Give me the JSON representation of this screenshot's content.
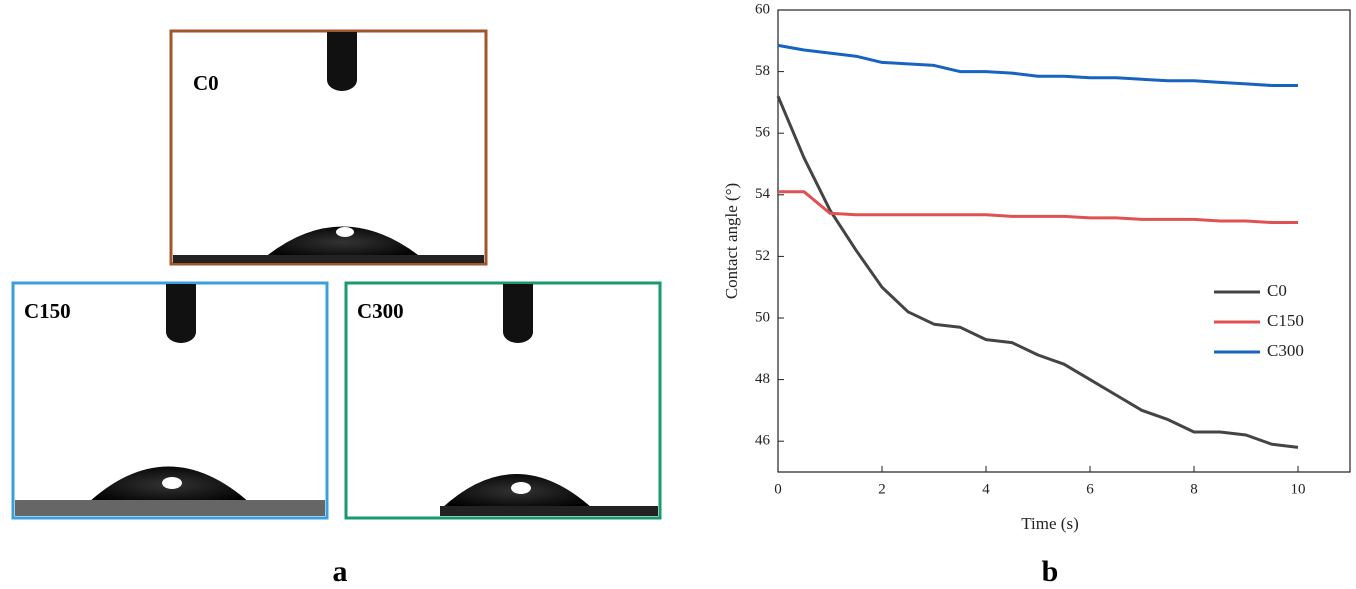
{
  "panel_a": {
    "label": "a",
    "photos": [
      {
        "label": "C0"
      },
      {
        "label": "C150"
      },
      {
        "label": "C300"
      }
    ]
  },
  "chart_data": {
    "type": "line",
    "panel_label": "b",
    "x_label": "Time (s)",
    "y_label": "Contact angle (°)",
    "x": [
      0,
      0.5,
      1,
      1.5,
      2,
      2.5,
      3,
      3.5,
      4,
      4.5,
      5,
      5.5,
      6,
      6.5,
      7,
      7.5,
      8,
      8.5,
      9,
      9.5,
      10
    ],
    "series": [
      {
        "name": "C0",
        "color": "#444444",
        "values": [
          57.2,
          55.2,
          53.5,
          52.2,
          51.0,
          50.2,
          49.8,
          49.7,
          49.3,
          49.2,
          48.8,
          48.5,
          48.0,
          47.5,
          47.0,
          46.7,
          46.3,
          46.3,
          46.2,
          45.9,
          45.8
        ]
      },
      {
        "name": "C150",
        "color": "#e05252",
        "values": [
          54.1,
          54.1,
          53.4,
          53.35,
          53.35,
          53.35,
          53.35,
          53.35,
          53.35,
          53.3,
          53.3,
          53.3,
          53.25,
          53.25,
          53.2,
          53.2,
          53.2,
          53.15,
          53.15,
          53.1,
          53.1
        ]
      },
      {
        "name": "C300",
        "color": "#1763c0",
        "values": [
          58.85,
          58.7,
          58.6,
          58.5,
          58.3,
          58.25,
          58.2,
          58.0,
          58.0,
          57.95,
          57.85,
          57.85,
          57.8,
          57.8,
          57.75,
          57.7,
          57.7,
          57.65,
          57.6,
          57.55,
          57.55
        ]
      }
    ],
    "xlim": [
      0,
      11
    ],
    "ylim": [
      45,
      60
    ],
    "xticks": [
      0,
      2,
      4,
      6,
      8,
      10
    ],
    "yticks": [
      46,
      48,
      50,
      52,
      54,
      56,
      58,
      60
    ],
    "legend": "right"
  }
}
